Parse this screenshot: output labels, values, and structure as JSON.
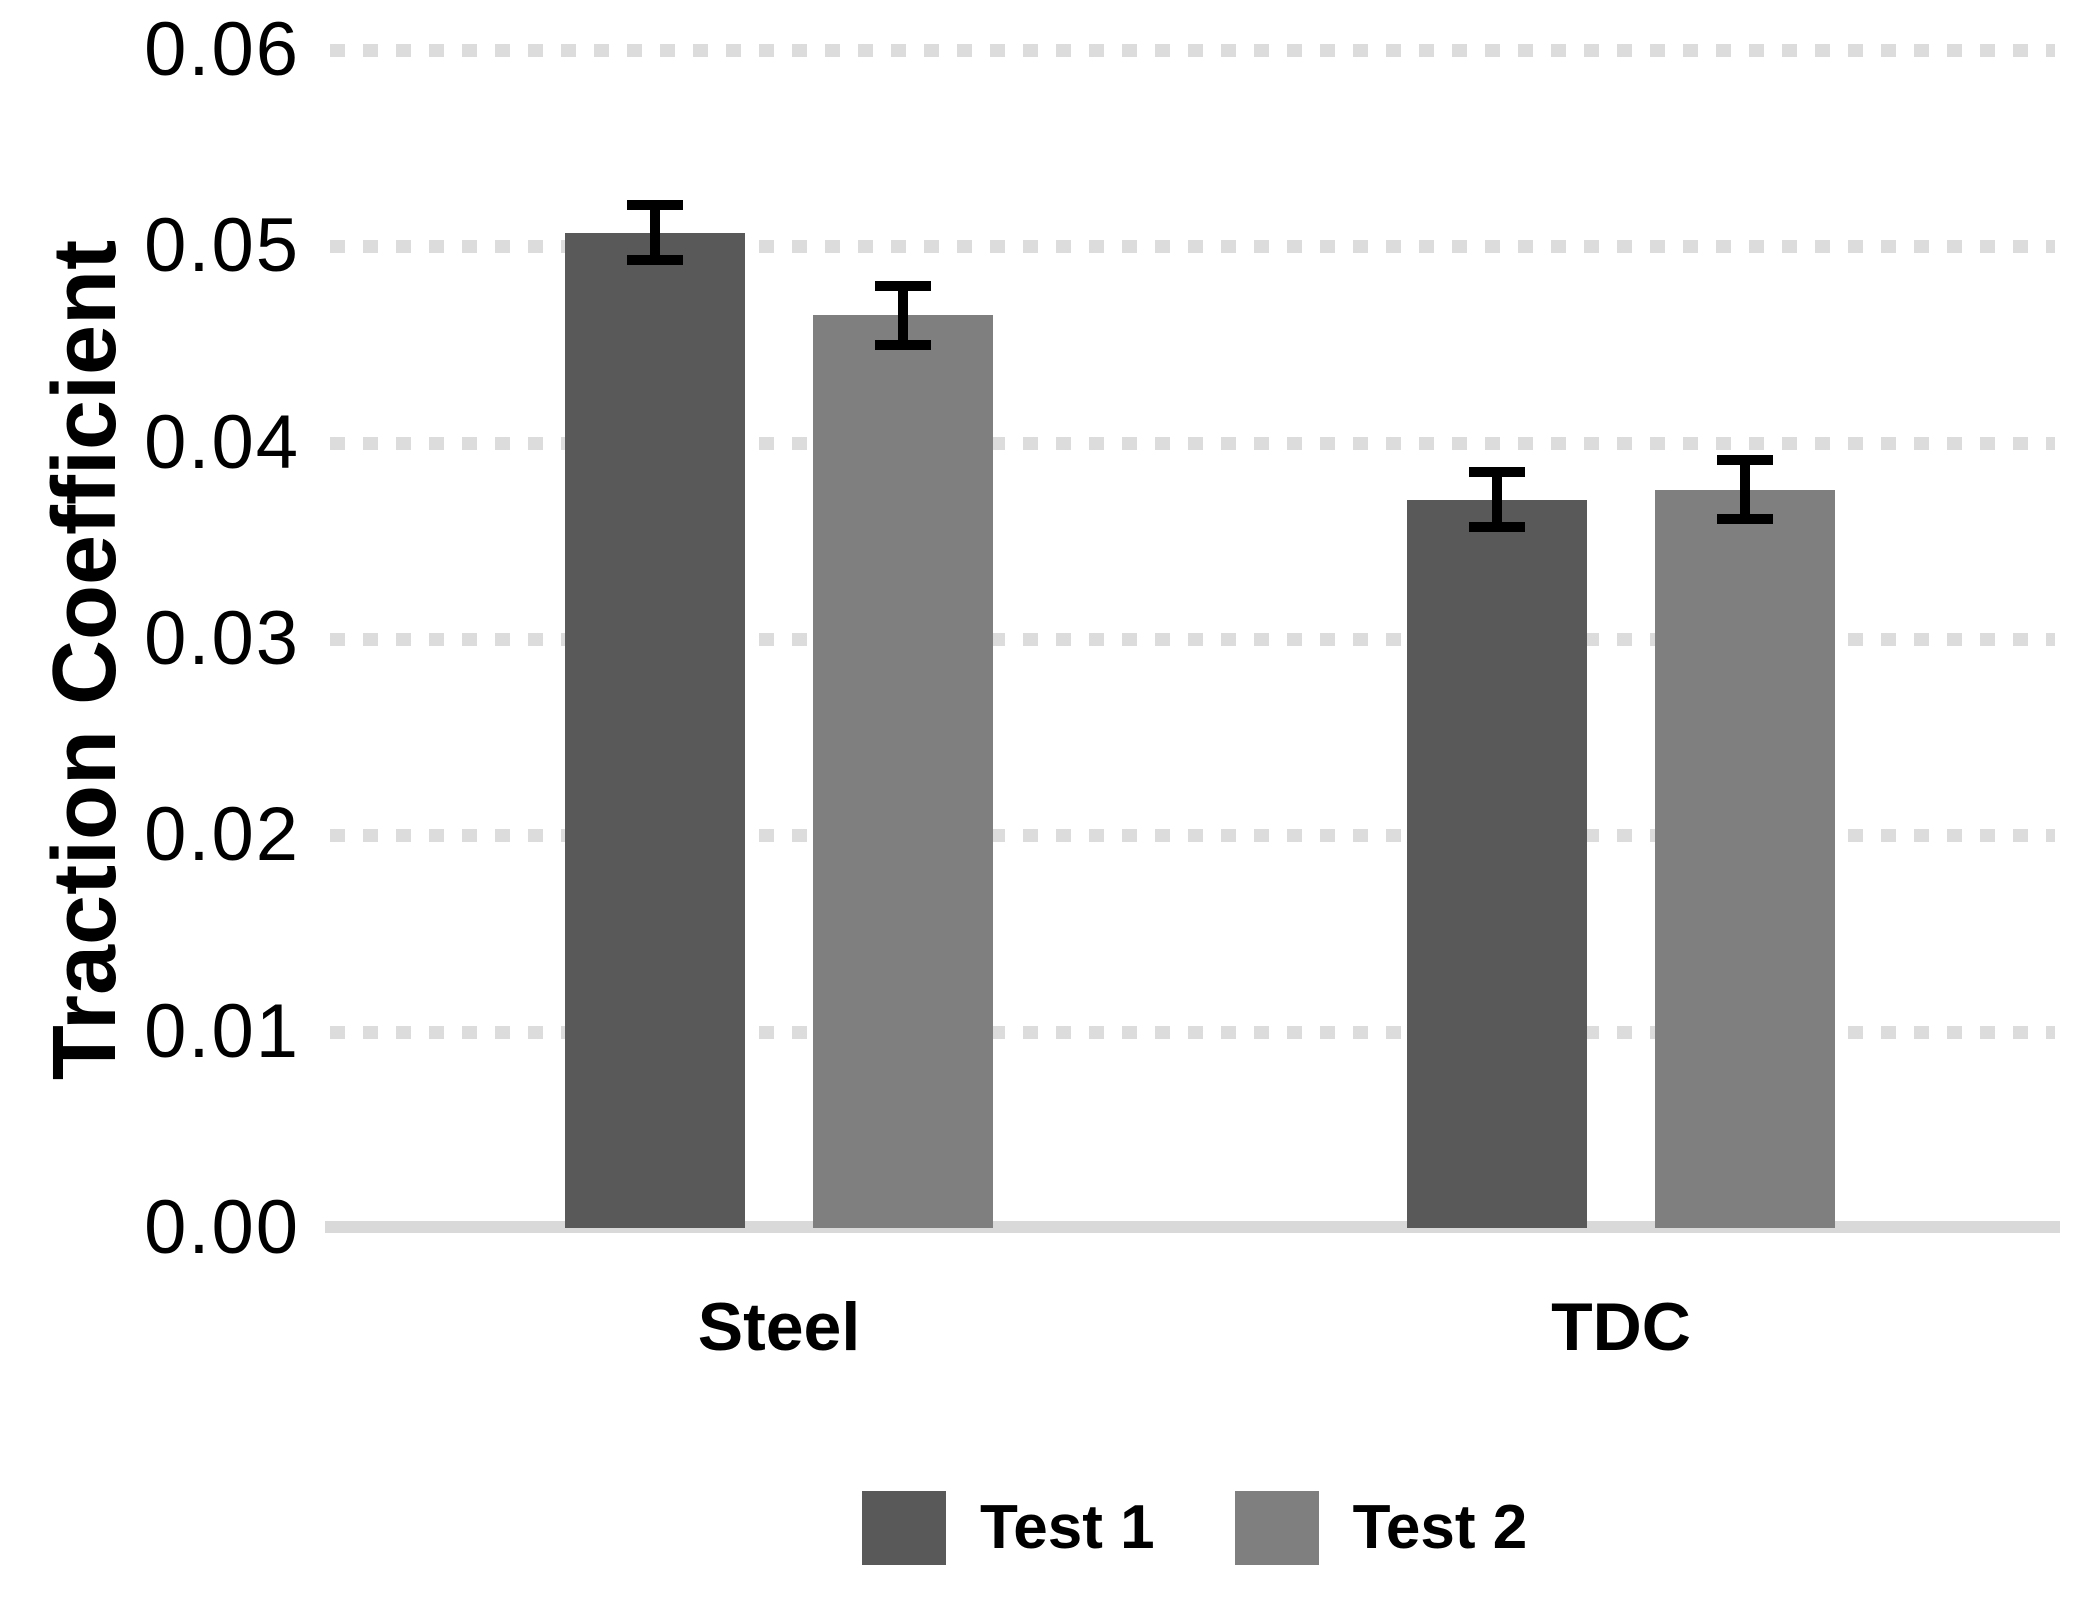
{
  "chart_data": {
    "type": "bar",
    "title": "",
    "xlabel": "",
    "ylabel": "Traction Coefficient",
    "categories": [
      "Steel",
      "TDC"
    ],
    "series": [
      {
        "name": "Test 1",
        "color": "#595959",
        "values": [
          0.0507,
          0.0371
        ],
        "errors": [
          0.0014,
          0.0014
        ]
      },
      {
        "name": "Test 2",
        "color": "#7f7f7f",
        "values": [
          0.0465,
          0.0376
        ],
        "errors": [
          0.0015,
          0.0015
        ]
      }
    ],
    "ylim": [
      0,
      0.06
    ],
    "ytick_step": 0.01,
    "yticks": [
      {
        "value": 0.06,
        "label": "0.06"
      },
      {
        "value": 0.05,
        "label": "0.05"
      },
      {
        "value": 0.04,
        "label": "0.04"
      },
      {
        "value": 0.03,
        "label": "0.03"
      },
      {
        "value": 0.02,
        "label": "0.02"
      },
      {
        "value": 0.01,
        "label": "0.01"
      },
      {
        "value": 0.0,
        "label": "0.00"
      }
    ],
    "grid": "horizontal-dashed",
    "gridline_color": "#dcdcdc",
    "axis_line_color": "#d9d9d9",
    "error_bar_color": "#000000",
    "bar_outline": "none",
    "legend_position": "bottom"
  }
}
